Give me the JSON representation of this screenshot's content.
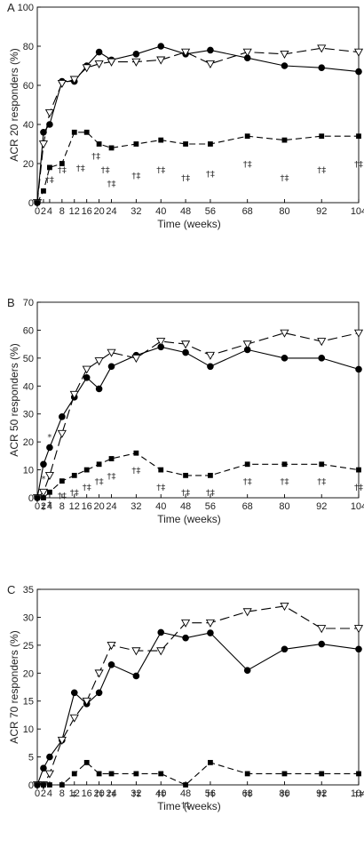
{
  "chart_data": [
    {
      "type": "line",
      "panel": "A",
      "xlabel": "Time (weeks)",
      "ylabel": "ACR 20 responders (%)",
      "ylim": [
        0,
        100
      ],
      "yticks": [
        0,
        20,
        40,
        60,
        80,
        100
      ],
      "xlim": [
        0,
        104
      ],
      "xticks": [
        0,
        2,
        4,
        8,
        12,
        16,
        20,
        24,
        32,
        40,
        48,
        56,
        68,
        80,
        92,
        104
      ],
      "grid": false,
      "series": [
        {
          "marker": "circle-filled",
          "dash": "solid",
          "color": "#000000",
          "x": [
            0,
            2,
            4,
            8,
            12,
            16,
            20,
            24,
            32,
            40,
            48,
            56,
            68,
            80,
            92,
            104
          ],
          "values": [
            0,
            36,
            40,
            62,
            62,
            70,
            77,
            73,
            76,
            80,
            76,
            78,
            74,
            70,
            69,
            67
          ]
        },
        {
          "marker": "triangle-down-open",
          "dash": "long-dash",
          "color": "#000000",
          "x": [
            0,
            2,
            4,
            8,
            12,
            16,
            20,
            24,
            32,
            40,
            48,
            56,
            68,
            80,
            92,
            104
          ],
          "values": [
            0,
            30,
            46,
            61,
            63,
            69,
            71,
            72,
            72,
            73,
            77,
            71,
            77,
            76,
            79,
            77
          ]
        },
        {
          "marker": "square-filled",
          "dash": "dash",
          "color": "#000000",
          "x": [
            0,
            2,
            4,
            8,
            12,
            16,
            20,
            24,
            32,
            40,
            48,
            56,
            68,
            80,
            92,
            104
          ],
          "values": [
            0,
            6,
            18,
            20,
            36,
            36,
            30,
            28,
            30,
            32,
            30,
            30,
            34,
            32,
            34,
            34
          ]
        }
      ],
      "annotations": [
        {
          "x": 4,
          "y": 12,
          "text": "†‡"
        },
        {
          "x": 8,
          "y": 17,
          "text": "†‡"
        },
        {
          "x": 14,
          "y": 18,
          "text": "†‡"
        },
        {
          "x": 19,
          "y": 24,
          "text": "†‡"
        },
        {
          "x": 22,
          "y": 17,
          "text": "†‡"
        },
        {
          "x": 24,
          "y": 10,
          "text": "†‡"
        },
        {
          "x": 32,
          "y": 14,
          "text": "†‡"
        },
        {
          "x": 40,
          "y": 17,
          "text": "†‡"
        },
        {
          "x": 48,
          "y": 13,
          "text": "†‡"
        },
        {
          "x": 56,
          "y": 15,
          "text": "†‡"
        },
        {
          "x": 68,
          "y": 20,
          "text": "†‡"
        },
        {
          "x": 80,
          "y": 13,
          "text": "†‡"
        },
        {
          "x": 92,
          "y": 17,
          "text": "†‡"
        },
        {
          "x": 104,
          "y": 20,
          "text": "†‡"
        }
      ]
    },
    {
      "type": "line",
      "panel": "B",
      "xlabel": "Time (weeks)",
      "ylabel": "ACR 50 responders (%)",
      "ylim": [
        0,
        70
      ],
      "yticks": [
        0,
        10,
        20,
        30,
        40,
        50,
        60,
        70
      ],
      "xlim": [
        0,
        104
      ],
      "xticks": [
        0,
        2,
        4,
        8,
        12,
        16,
        20,
        24,
        32,
        40,
        48,
        56,
        68,
        80,
        92,
        104
      ],
      "grid": false,
      "series": [
        {
          "marker": "circle-filled",
          "dash": "solid",
          "color": "#000000",
          "x": [
            0,
            2,
            4,
            8,
            12,
            16,
            20,
            24,
            32,
            40,
            48,
            56,
            68,
            80,
            92,
            104
          ],
          "values": [
            0,
            12,
            18,
            29,
            36,
            43,
            39,
            47,
            51,
            54,
            52,
            47,
            53,
            50,
            50,
            46
          ]
        },
        {
          "marker": "triangle-down-open",
          "dash": "long-dash",
          "color": "#000000",
          "x": [
            0,
            2,
            4,
            8,
            12,
            16,
            20,
            24,
            32,
            40,
            48,
            56,
            68,
            80,
            92,
            104
          ],
          "values": [
            0,
            2,
            8,
            23,
            37,
            46,
            49,
            52,
            50,
            56,
            55,
            51,
            55,
            59,
            56,
            59
          ]
        },
        {
          "marker": "square-filled",
          "dash": "dash",
          "color": "#000000",
          "x": [
            0,
            2,
            4,
            8,
            12,
            16,
            20,
            24,
            32,
            40,
            48,
            56,
            68,
            80,
            92,
            104
          ],
          "values": [
            0,
            0,
            2,
            6,
            8,
            10,
            12,
            14,
            16,
            10,
            8,
            8,
            12,
            12,
            12,
            10
          ]
        }
      ],
      "annotations": [
        {
          "x": 2,
          "y": 7,
          "text": "*"
        },
        {
          "x": 4,
          "y": 22,
          "text": "*"
        },
        {
          "x": 2,
          "y": -3,
          "text": "‡"
        },
        {
          "x": 4,
          "y": -2,
          "text": "‡"
        },
        {
          "x": 8,
          "y": 1,
          "text": "†‡"
        },
        {
          "x": 12,
          "y": 2,
          "text": "†‡"
        },
        {
          "x": 16,
          "y": 4,
          "text": "†‡"
        },
        {
          "x": 20,
          "y": 6,
          "text": "†‡"
        },
        {
          "x": 24,
          "y": 8,
          "text": "†‡"
        },
        {
          "x": 32,
          "y": 10,
          "text": "†‡"
        },
        {
          "x": 40,
          "y": 4,
          "text": "†‡"
        },
        {
          "x": 48,
          "y": 2,
          "text": "†‡"
        },
        {
          "x": 56,
          "y": 2,
          "text": "†‡"
        },
        {
          "x": 68,
          "y": 6,
          "text": "†‡"
        },
        {
          "x": 80,
          "y": 6,
          "text": "†‡"
        },
        {
          "x": 92,
          "y": 6,
          "text": "†‡"
        },
        {
          "x": 104,
          "y": 4,
          "text": "†‡"
        }
      ]
    },
    {
      "type": "line",
      "panel": "C",
      "xlabel": "Time (weeks)",
      "ylabel": "ACR 70 responders (%)",
      "ylim": [
        0,
        35
      ],
      "yticks": [
        0,
        5,
        10,
        15,
        20,
        25,
        30,
        35
      ],
      "xlim": [
        0,
        104
      ],
      "xticks": [
        0,
        2,
        4,
        8,
        12,
        16,
        20,
        24,
        32,
        40,
        48,
        56,
        68,
        80,
        92,
        104
      ],
      "grid": false,
      "series": [
        {
          "marker": "circle-filled",
          "dash": "solid",
          "color": "#000000",
          "x": [
            0,
            2,
            4,
            8,
            12,
            16,
            20,
            24,
            32,
            40,
            48,
            56,
            68,
            80,
            92,
            104
          ],
          "values": [
            0,
            3,
            5,
            8,
            16.5,
            14.5,
            16.5,
            21.5,
            19.5,
            27.3,
            26.3,
            27.2,
            20.5,
            24.3,
            25.2,
            24.3
          ]
        },
        {
          "marker": "triangle-down-open",
          "dash": "long-dash",
          "color": "#000000",
          "x": [
            0,
            2,
            4,
            8,
            12,
            16,
            20,
            24,
            32,
            40,
            48,
            56,
            68,
            80,
            92,
            104
          ],
          "values": [
            0,
            0,
            2,
            8,
            12,
            15,
            20,
            25,
            24,
            24,
            29,
            29,
            31,
            32,
            28,
            28
          ]
        },
        {
          "marker": "square-filled",
          "dash": "dash",
          "color": "#000000",
          "x": [
            0,
            2,
            4,
            8,
            12,
            16,
            20,
            24,
            32,
            40,
            48,
            56,
            68,
            80,
            92,
            104
          ],
          "values": [
            0,
            0,
            0,
            0,
            2,
            4,
            2,
            2,
            2,
            2,
            0,
            4,
            2,
            2,
            2,
            2
          ]
        }
      ],
      "annotations": [
        {
          "x": 12,
          "y": -1.5,
          "text": "‡"
        },
        {
          "x": 20,
          "y": -1.5,
          "text": "†‡"
        },
        {
          "x": 24,
          "y": -1.5,
          "text": "†‡"
        },
        {
          "x": 32,
          "y": -1.5,
          "text": "†‡"
        },
        {
          "x": 40,
          "y": -1.5,
          "text": "†‡"
        },
        {
          "x": 48,
          "y": -3.5,
          "text": "†‡"
        },
        {
          "x": 56,
          "y": -1.5,
          "text": "†‡"
        },
        {
          "x": 68,
          "y": -1.5,
          "text": "†‡"
        },
        {
          "x": 80,
          "y": -1.5,
          "text": "†‡"
        },
        {
          "x": 92,
          "y": -1.5,
          "text": "†‡"
        },
        {
          "x": 104,
          "y": -1.5,
          "text": "†‡"
        }
      ]
    }
  ]
}
